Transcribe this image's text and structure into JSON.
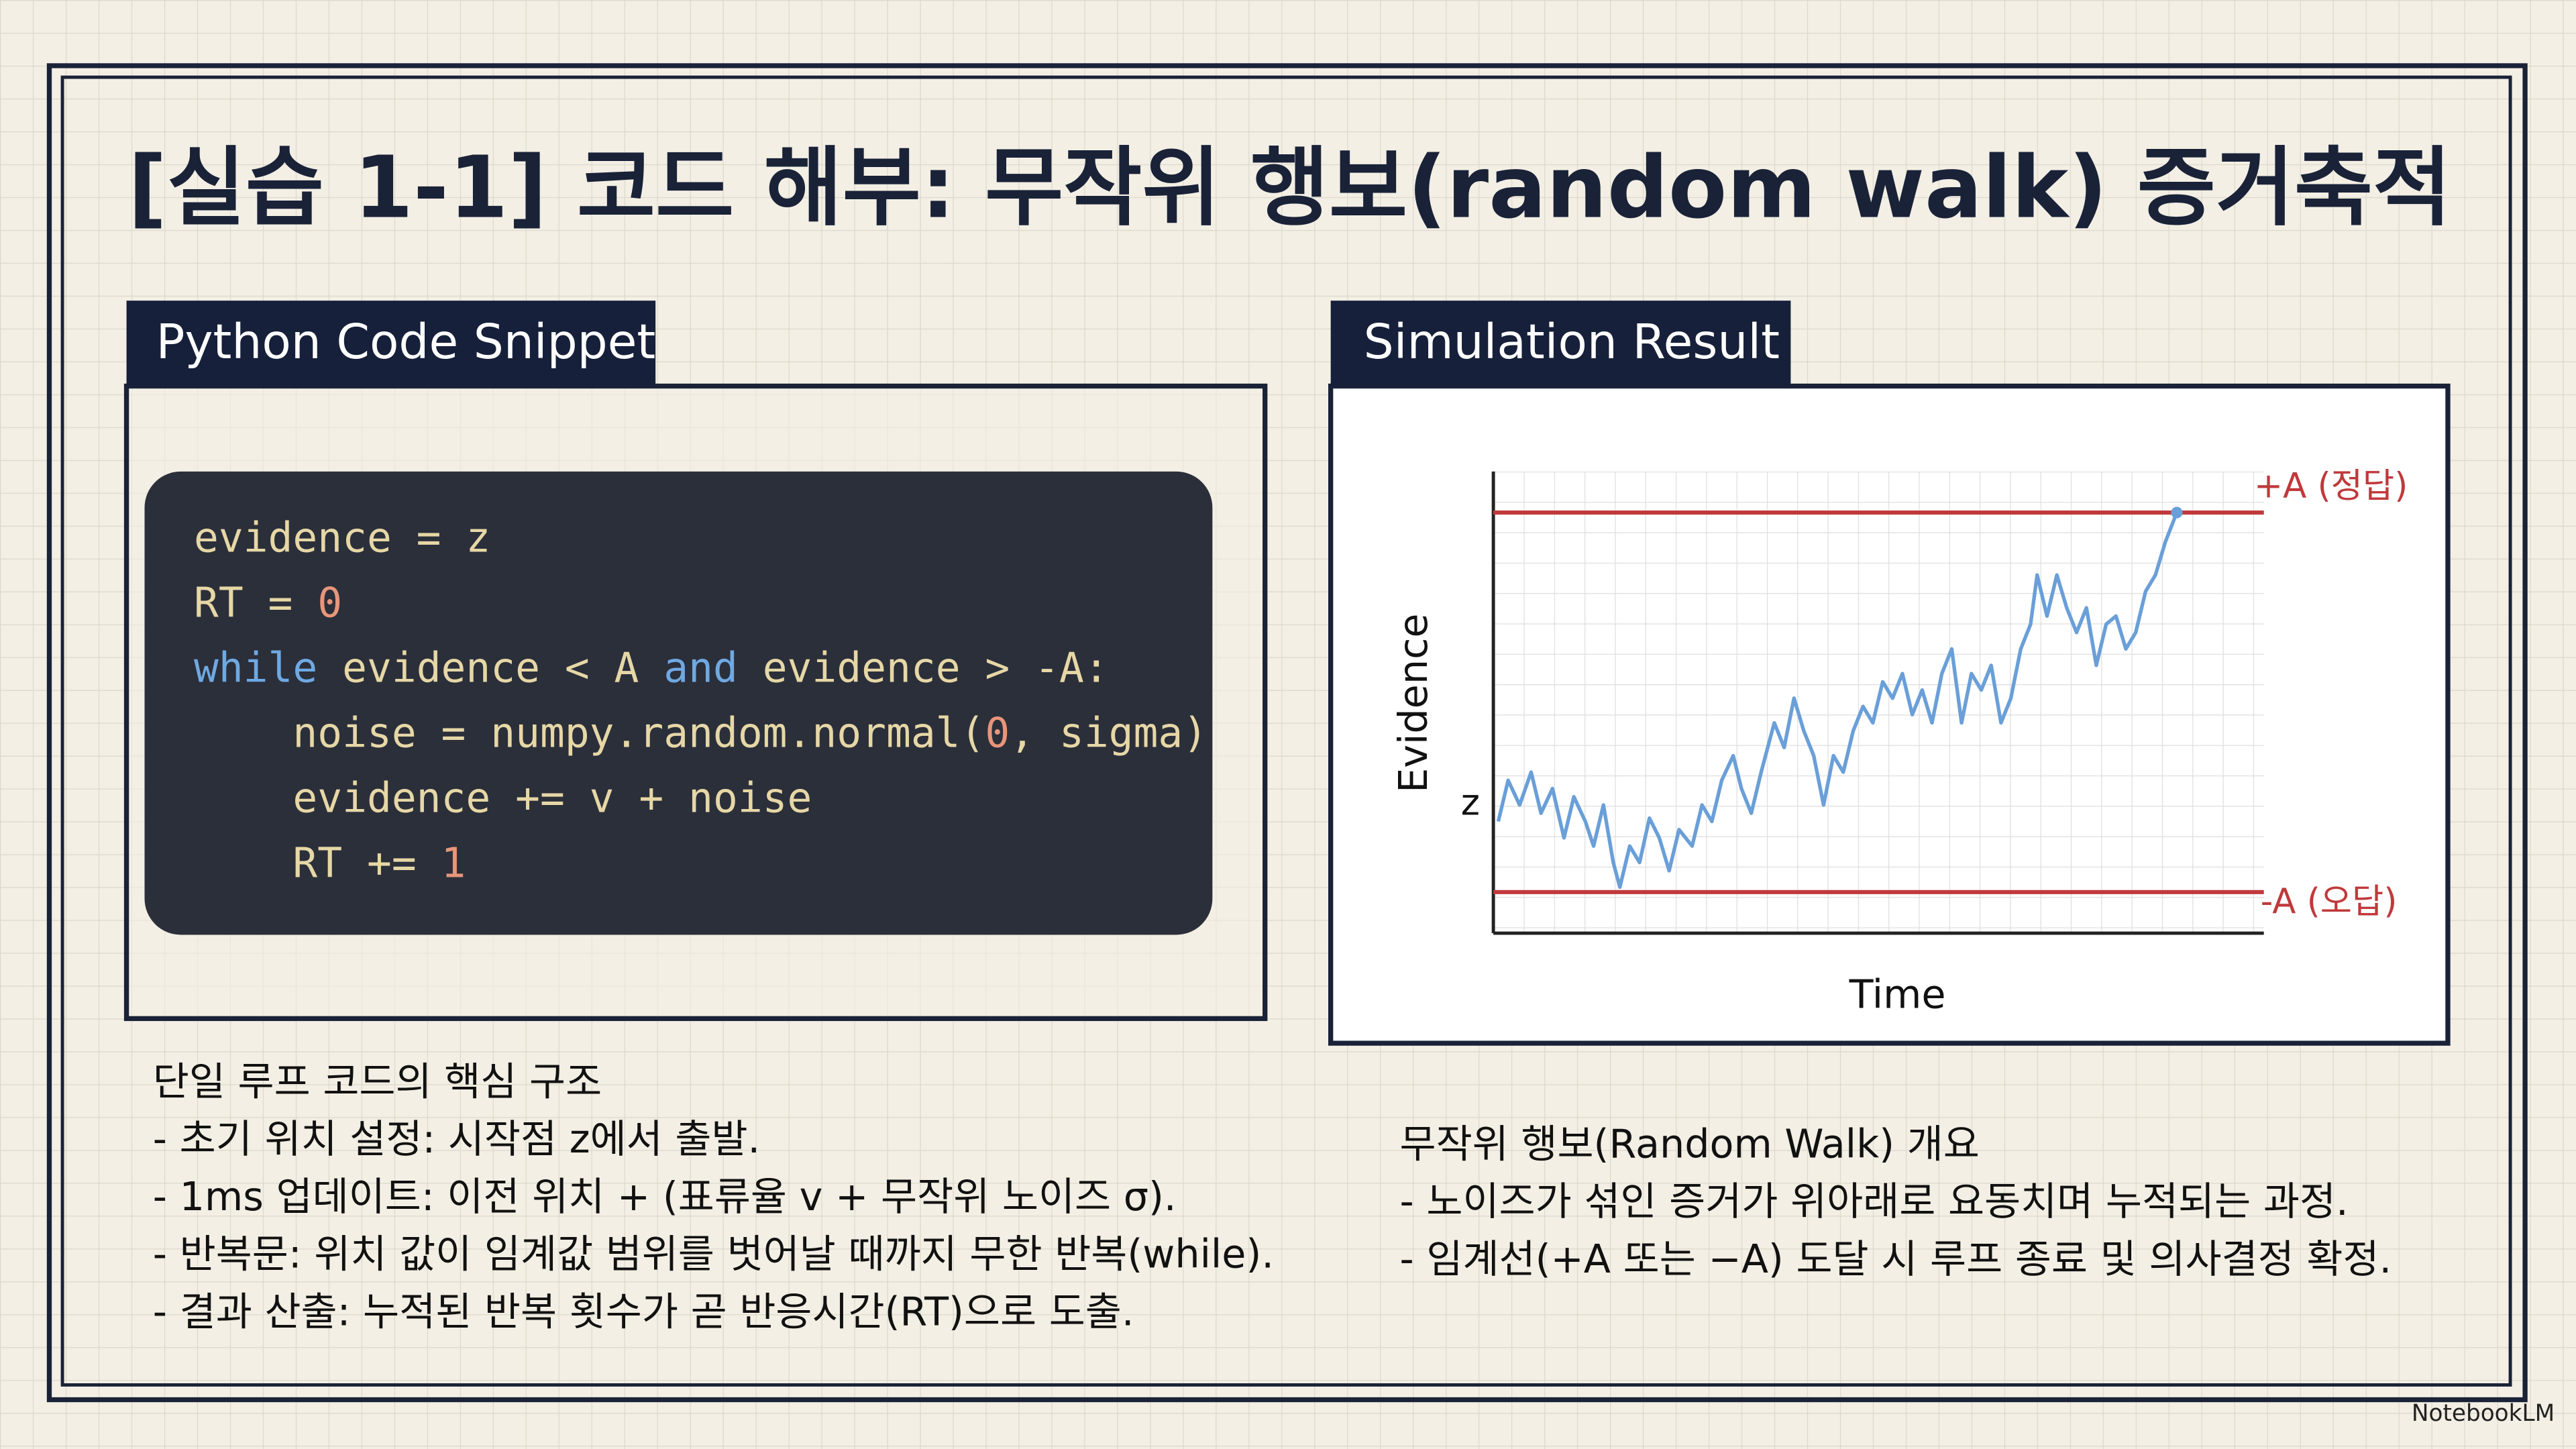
{
  "title": "[실습 1-1] 코드 해부: 무작위 행보(random walk) 증거축적",
  "code_panel": {
    "header": "Python Code Snippet",
    "colors": {
      "plain": "#e6d7a6",
      "number": "#e8957a",
      "keyword": "#6fa9e2"
    },
    "lines": [
      [
        {
          "text": "evidence = z",
          "kind": "plain"
        }
      ],
      [
        {
          "text": "RT = ",
          "kind": "plain"
        },
        {
          "text": "0",
          "kind": "number"
        }
      ],
      [
        {
          "text": "while",
          "kind": "keyword"
        },
        {
          "text": " evidence < A ",
          "kind": "plain"
        },
        {
          "text": "and",
          "kind": "keyword"
        },
        {
          "text": " evidence > -A:",
          "kind": "plain"
        }
      ],
      [
        {
          "text": "    noise = numpy.random.normal(",
          "kind": "plain"
        },
        {
          "text": "0",
          "kind": "number"
        },
        {
          "text": ", sigma)",
          "kind": "plain"
        }
      ],
      [
        {
          "text": "    evidence += v + noise",
          "kind": "plain"
        }
      ],
      [
        {
          "text": "    RT += ",
          "kind": "plain"
        },
        {
          "text": "1",
          "kind": "number"
        }
      ]
    ]
  },
  "sim_panel": {
    "header": "Simulation Result",
    "y_label": "Evidence",
    "x_label": "Time",
    "upper_label": "+A (정답)",
    "lower_label": "-A (오답)",
    "start_label": "z"
  },
  "left_notes": {
    "heading": "단일 루프 코드의 핵심 구조",
    "items": [
      "- 초기 위치 설정: 시작점 z에서 출발.",
      "- 1ms 업데이트: 이전 위치 + (표류율 v + 무작위 노이즈 σ).",
      "- 반복문: 위치 값이 임계값 범위를 벗어날 때까지 무한 반복(while).",
      "- 결과 산출: 누적된 반복 횟수가 곧 반응시간(RT)으로 도출."
    ]
  },
  "right_notes": {
    "heading": "무작위 행보(Random Walk) 개요",
    "items": [
      "- 노이즈가 섞인 증거가 위아래로 요동치며 누적되는 과정.",
      "- 임계선(+A 또는 −A) 도달 시 루프 종료 및 의사결정 확정."
    ]
  },
  "watermark": "NotebookLM"
}
